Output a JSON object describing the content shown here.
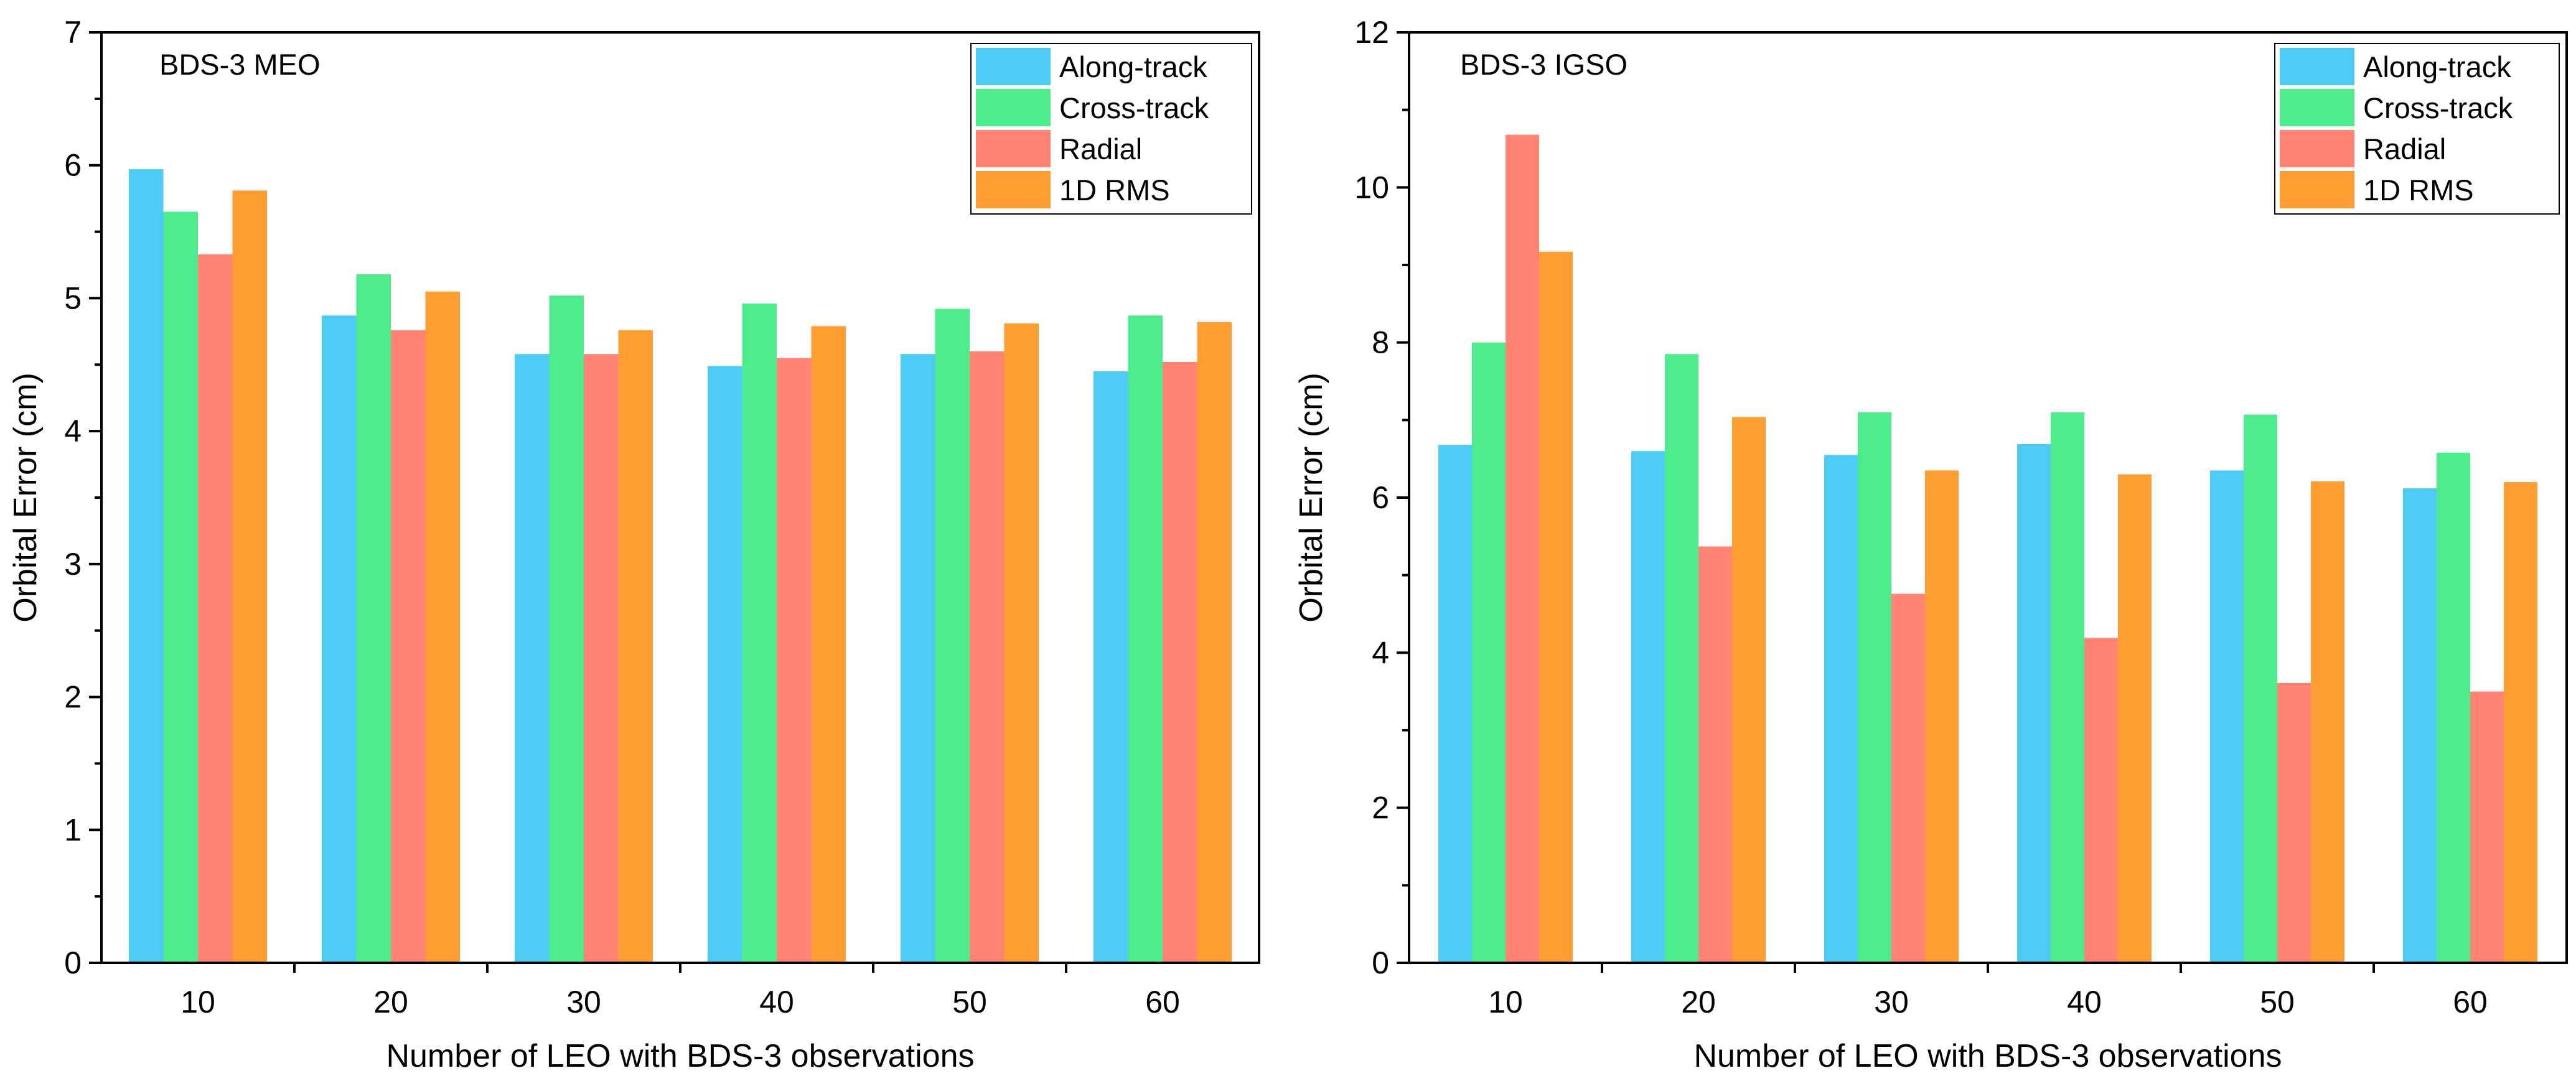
{
  "chart_data": [
    {
      "type": "bar",
      "title": "BDS-3 MEO",
      "xlabel": "Number of LEO with BDS-3 observations",
      "ylabel": "Orbital Error (cm)",
      "ylim": [
        0,
        7
      ],
      "yticks": [
        0,
        1,
        2,
        3,
        4,
        5,
        6,
        7
      ],
      "categories": [
        "10",
        "20",
        "30",
        "40",
        "50",
        "60"
      ],
      "grid": false,
      "legend_position": "top-right",
      "series": [
        {
          "name": "Along-track",
          "color": "#4DCBF4",
          "values": [
            5.97,
            4.87,
            4.58,
            4.49,
            4.58,
            4.45
          ]
        },
        {
          "name": "Cross-track",
          "color": "#4DEB8C",
          "values": [
            5.65,
            5.18,
            5.02,
            4.96,
            4.92,
            4.87
          ]
        },
        {
          "name": "Radial",
          "color": "#FF8473",
          "values": [
            5.33,
            4.76,
            4.58,
            4.55,
            4.6,
            4.52
          ]
        },
        {
          "name": "1D RMS",
          "color": "#FF9E33",
          "values": [
            5.81,
            5.05,
            4.76,
            4.79,
            4.81,
            4.82
          ]
        }
      ]
    },
    {
      "type": "bar",
      "title": "BDS-3 IGSO",
      "xlabel": "Number of LEO with BDS-3 observations",
      "ylabel": "Orbital Error (cm)",
      "ylim": [
        0,
        12
      ],
      "yticks": [
        0,
        2,
        4,
        6,
        8,
        10,
        12
      ],
      "categories": [
        "10",
        "20",
        "30",
        "40",
        "50",
        "60"
      ],
      "grid": false,
      "legend_position": "top-right",
      "series": [
        {
          "name": "Along-track",
          "color": "#4DCBF4",
          "values": [
            6.68,
            6.6,
            6.55,
            6.69,
            6.35,
            6.12
          ]
        },
        {
          "name": "Cross-track",
          "color": "#4DEB8C",
          "values": [
            8.0,
            7.85,
            7.1,
            7.1,
            7.07,
            6.58
          ]
        },
        {
          "name": "Radial",
          "color": "#FF8473",
          "values": [
            10.68,
            5.37,
            4.76,
            4.19,
            3.61,
            3.5
          ]
        },
        {
          "name": "1D RMS",
          "color": "#FF9E33",
          "values": [
            9.17,
            7.04,
            6.35,
            6.3,
            6.21,
            6.2
          ]
        }
      ]
    }
  ]
}
